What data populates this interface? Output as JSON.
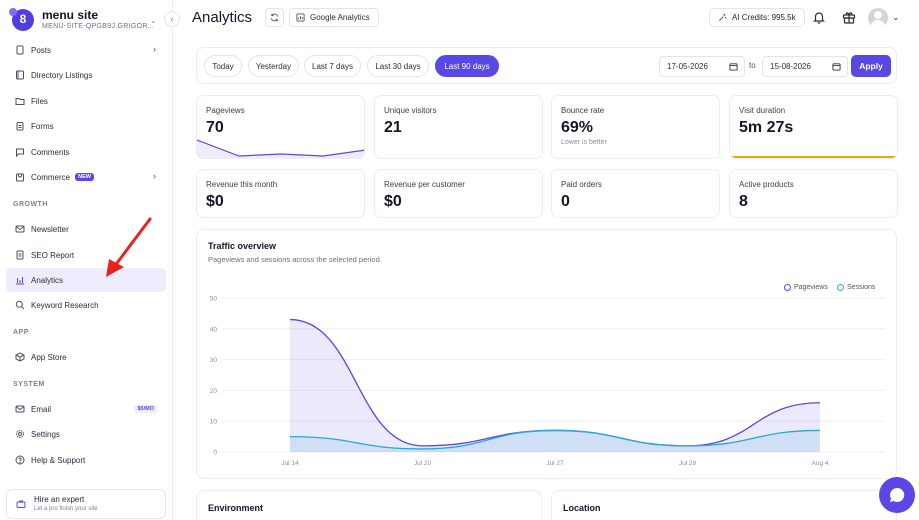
{
  "sidebar": {
    "brand_name": "menu site",
    "brand_sub": "MENU-SITE-QPGB9J.GRIGOR...",
    "brand_logo_letter": "8",
    "items": [
      {
        "label": "Posts",
        "icon": "document-icon"
      },
      {
        "label": "Directory Listings",
        "icon": "book-icon"
      },
      {
        "label": "Files",
        "icon": "folder-icon"
      },
      {
        "label": "Forms",
        "icon": "clipboard-icon"
      },
      {
        "label": "Comments",
        "icon": "chat-icon"
      },
      {
        "label": "Commerce",
        "icon": "cart-icon",
        "badge": "NEW"
      },
      {
        "label": "Newsletter",
        "icon": "mail-icon"
      },
      {
        "label": "SEO Report",
        "icon": "report-icon"
      },
      {
        "label": "Analytics",
        "icon": "bar-chart-icon"
      },
      {
        "label": "Keyword Research",
        "icon": "search-icon"
      },
      {
        "label": "App Store",
        "icon": "box-icon"
      },
      {
        "label": "Email",
        "icon": "mail-icon",
        "badge": "$5/MO"
      },
      {
        "label": "Settings",
        "icon": "gear-icon"
      },
      {
        "label": "Help & Support",
        "icon": "help-icon"
      }
    ],
    "sections": {
      "growth": "GROWTH",
      "app": "APP",
      "system": "SYSTEM"
    },
    "expert": {
      "title": "Hire an expert",
      "subtitle": "Let a pro finish your site"
    }
  },
  "header": {
    "title": "Analytics",
    "ga_label": "Google Analytics",
    "credits_label": "AI Credits: 995.5k"
  },
  "filters": {
    "ranges": [
      "Today",
      "Yesterday",
      "Last 7 days",
      "Last 30 days",
      "Last 90 days"
    ],
    "active_range": "Last 90 days",
    "date_from": "17-05-2026",
    "date_to": "15-08-2026",
    "to_label": "to",
    "apply_label": "Apply"
  },
  "stats": [
    {
      "label": "Pageviews",
      "value": "70"
    },
    {
      "label": "Unique visitors",
      "value": "21"
    },
    {
      "label": "Bounce rate",
      "value": "69%",
      "note": "Lower is better"
    },
    {
      "label": "Visit duration",
      "value": "5m 27s"
    },
    {
      "label": "Revenue this month",
      "value": "$0"
    },
    {
      "label": "Revenue per customer",
      "value": "$0"
    },
    {
      "label": "Paid orders",
      "value": "0"
    },
    {
      "label": "Active products",
      "value": "8"
    }
  ],
  "traffic": {
    "title": "Traffic overview",
    "subtitle": "Pageviews and sessions across the selected period."
  },
  "chart_data": {
    "type": "area",
    "x": [
      "Jul 14",
      "Jul 20",
      "Jul 27",
      "Jul 28",
      "Aug 4"
    ],
    "series": [
      {
        "name": "Pageviews",
        "values": [
          43,
          2,
          7,
          2,
          16
        ],
        "color": "#5a48e6"
      },
      {
        "name": "Sessions",
        "values": [
          5,
          1,
          7,
          2,
          7
        ],
        "color": "#2aa6d6"
      }
    ],
    "yticks": [
      0,
      10,
      20,
      30,
      40,
      50
    ],
    "ylim": [
      0,
      50
    ],
    "grid": true,
    "legend": "top-right"
  },
  "panels": {
    "environment": "Environment",
    "location": "Location"
  },
  "colors": {
    "accent": "#5a48e6",
    "visit_duration_bar": "#f2a516"
  }
}
